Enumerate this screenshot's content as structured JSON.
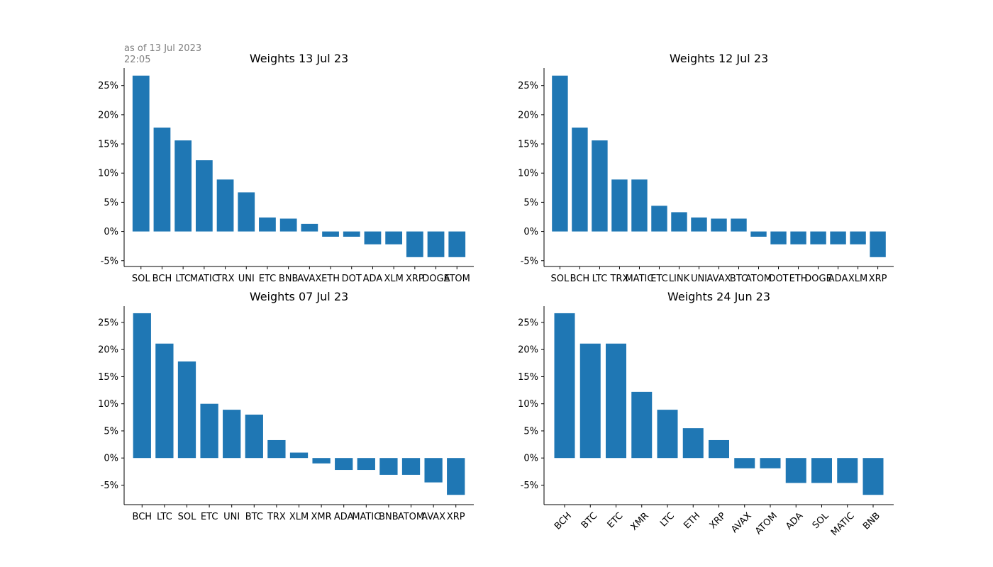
{
  "note": {
    "line1": "as of 13 Jul 2023",
    "line2": "22:05"
  },
  "colors": {
    "bar": "#1f77b4",
    "axis": "#000000",
    "note": "#808080"
  },
  "chart_data": [
    {
      "type": "bar",
      "title": "Weights 13 Jul 23",
      "categories": [
        "SOL",
        "BCH",
        "LTC",
        "MATIC",
        "TRX",
        "UNI",
        "ETC",
        "BNB",
        "AVAX",
        "ETH",
        "DOT",
        "ADA",
        "XLM",
        "XRP",
        "DOGE",
        "ATOM"
      ],
      "values": [
        26.7,
        17.8,
        15.6,
        12.2,
        8.9,
        6.7,
        2.4,
        2.2,
        1.3,
        -0.9,
        -0.9,
        -2.2,
        -2.2,
        -4.4,
        -4.4,
        -4.4
      ],
      "ylim": [
        -6.0,
        28.0
      ],
      "yticks": [
        -5,
        0,
        5,
        10,
        15,
        20,
        25
      ],
      "ytick_labels": [
        "-5%",
        "0%",
        "5%",
        "10%",
        "15%",
        "20%",
        "25%"
      ],
      "xlabel": "",
      "ylabel": "",
      "grid": false,
      "rotate_labels": false
    },
    {
      "type": "bar",
      "title": "Weights 12 Jul 23",
      "categories": [
        "SOL",
        "BCH",
        "LTC",
        "TRX",
        "MATIC",
        "ETC",
        "LINK",
        "UNI",
        "AVAX",
        "BTC",
        "ATOM",
        "DOT",
        "ETH",
        "DOGE",
        "ADA",
        "XLM",
        "XRP"
      ],
      "values": [
        26.7,
        17.8,
        15.6,
        8.9,
        8.9,
        4.4,
        3.3,
        2.4,
        2.2,
        2.2,
        -0.9,
        -2.2,
        -2.2,
        -2.2,
        -2.2,
        -2.2,
        -4.4
      ],
      "ylim": [
        -6.0,
        28.0
      ],
      "yticks": [
        -5,
        0,
        5,
        10,
        15,
        20,
        25
      ],
      "ytick_labels": [
        "-5%",
        "0%",
        "5%",
        "10%",
        "15%",
        "20%",
        "25%"
      ],
      "xlabel": "",
      "ylabel": "",
      "grid": false,
      "rotate_labels": false
    },
    {
      "type": "bar",
      "title": "Weights 07 Jul 23",
      "categories": [
        "BCH",
        "LTC",
        "SOL",
        "ETC",
        "UNI",
        "BTC",
        "TRX",
        "XLM",
        "XMR",
        "ADA",
        "MATIC",
        "BNB",
        "ATOM",
        "AVAX",
        "XRP"
      ],
      "values": [
        26.7,
        21.1,
        17.8,
        10.0,
        8.9,
        8.0,
        3.3,
        1.0,
        -1.0,
        -2.2,
        -2.2,
        -3.1,
        -3.1,
        -4.5,
        -6.8
      ],
      "ylim": [
        -8.6,
        28.0
      ],
      "yticks": [
        -5,
        0,
        5,
        10,
        15,
        20,
        25
      ],
      "ytick_labels": [
        "-5%",
        "0%",
        "5%",
        "10%",
        "15%",
        "20%",
        "25%"
      ],
      "xlabel": "",
      "ylabel": "",
      "grid": false,
      "rotate_labels": false
    },
    {
      "type": "bar",
      "title": "Weights 24 Jun 23",
      "categories": [
        "BCH",
        "BTC",
        "ETC",
        "XMR",
        "LTC",
        "ETH",
        "XRP",
        "AVAX",
        "ATOM",
        "ADA",
        "SOL",
        "MATIC",
        "BNB"
      ],
      "values": [
        26.7,
        21.1,
        21.1,
        12.2,
        8.9,
        5.5,
        3.3,
        -1.9,
        -1.9,
        -4.6,
        -4.6,
        -4.6,
        -6.8
      ],
      "ylim": [
        -8.6,
        28.0
      ],
      "yticks": [
        -5,
        0,
        5,
        10,
        15,
        20,
        25
      ],
      "ytick_labels": [
        "-5%",
        "0%",
        "5%",
        "10%",
        "15%",
        "20%",
        "25%"
      ],
      "xlabel": "",
      "ylabel": "",
      "grid": false,
      "rotate_labels": true
    }
  ]
}
